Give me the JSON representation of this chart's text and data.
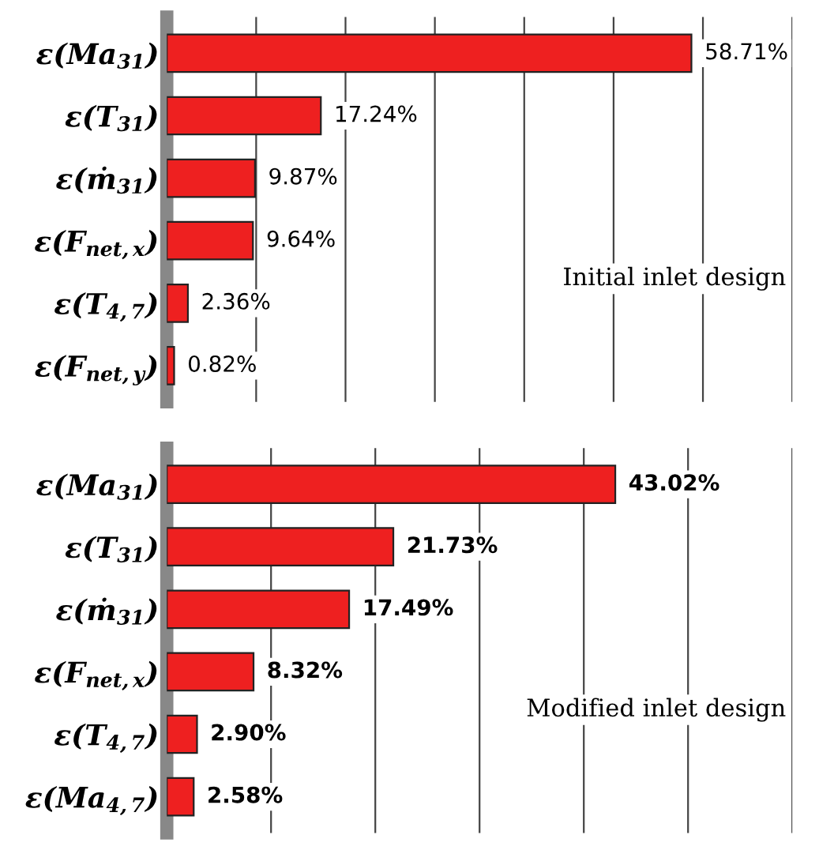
{
  "chart_data": [
    {
      "type": "bar",
      "orientation": "horizontal",
      "categories": [
        "ε(Ma$_{31}$)",
        "ε(T$_{31}$)",
        "ε(ṁ$_{31}$)",
        "ε(F$_{net,x}$)",
        "ε(T$_{4,7}$)",
        "ε(F$_{net,y}$)"
      ],
      "values": [
        58.71,
        17.24,
        9.87,
        9.64,
        2.36,
        0.82
      ],
      "value_labels": [
        "58.71%",
        "17.24%",
        "9.87%",
        "9.64%",
        "2.36%",
        "0.82%"
      ],
      "color": "#ee2020",
      "xlim": [
        0,
        70
      ],
      "xticks": [
        {
          "value": 0,
          "label": null
        },
        {
          "value": 10,
          "label": null
        },
        {
          "value": 20,
          "label": null
        },
        {
          "value": 30,
          "label": null
        },
        {
          "value": 40,
          "label": null
        },
        {
          "value": 50,
          "label": null
        },
        {
          "value": 60,
          "label": null
        },
        {
          "value": 70,
          "label": null
        }
      ],
      "grid": "x",
      "tick_labels": "y",
      "annotations": [
        "Initial inlet design"
      ]
    },
    {
      "type": "bar",
      "orientation": "horizontal",
      "categories": [
        "ε(Ma$_{31}$)",
        "ε(T$_{31}$)",
        "ε(ṁ$_{31}$)",
        "ε(F$_{net,x}$)",
        "ε(T$_{4,7}$)",
        "ε(Ma$_{4,7}$)"
      ],
      "values": [
        43.02,
        21.73,
        17.49,
        8.32,
        2.9,
        2.58
      ],
      "value_labels": [
        "43.02%",
        "21.73%",
        "17.49%",
        "8.32%",
        "2.90%",
        "2.58%"
      ],
      "color": "#ee2020",
      "xlim": [
        0,
        60
      ],
      "xticks": [
        {
          "value": 0,
          "label": null
        },
        {
          "value": 10,
          "label": null
        },
        {
          "value": 20,
          "label": null
        },
        {
          "value": 30,
          "label": null
        },
        {
          "value": 40,
          "label": null
        },
        {
          "value": 50,
          "label": null
        },
        {
          "value": 60,
          "label": null
        }
      ],
      "grid": "x",
      "tick_labels": "y",
      "annotations": [
        "Modified inlet design"
      ]
    }
  ]
}
